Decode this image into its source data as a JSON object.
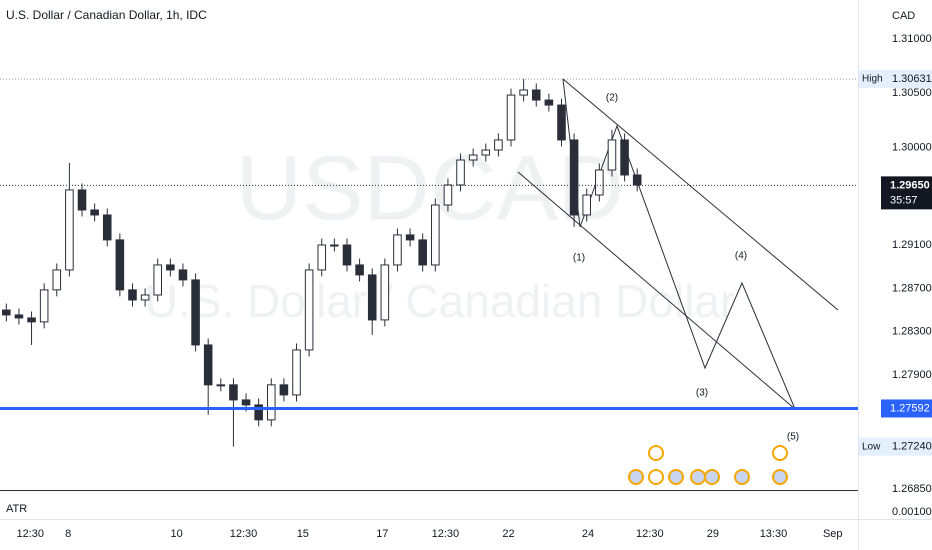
{
  "chart_data": {
    "type": "candlestick",
    "title": "U.S. Dollar / Canadian Dollar, 1h, IDC",
    "watermark": [
      "USDCAD",
      "U.S. Dollar / Canadian Dollar"
    ],
    "currency": "CAD",
    "color": "#2a2e39",
    "x": [
      0,
      1,
      2,
      3,
      4,
      5,
      6,
      7,
      8,
      9,
      10,
      11,
      12,
      13,
      14,
      15,
      16,
      17,
      18,
      19,
      20,
      21,
      22,
      23,
      24,
      25,
      26,
      27,
      28,
      29,
      30,
      31,
      32,
      33,
      34,
      35,
      36,
      37,
      38,
      39,
      40,
      41,
      42,
      43,
      44,
      45,
      46,
      47,
      48,
      49,
      50
    ],
    "open": [
      1.285,
      1.28455,
      1.28427,
      1.28391,
      1.28686,
      1.2887,
      1.29608,
      1.29423,
      1.29377,
      1.29147,
      1.28686,
      1.28593,
      1.28639,
      1.28916,
      1.2887,
      1.28778,
      1.28178,
      1.2781,
      1.2781,
      1.27671,
      1.27625,
      1.27487,
      1.2781,
      1.27717,
      1.28132,
      1.2887,
      1.291,
      1.291,
      1.28916,
      1.28824,
      1.28409,
      1.28916,
      1.29193,
      1.29147,
      1.28916,
      1.29469,
      1.29654,
      1.29884,
      1.2993,
      1.29976,
      1.30069,
      1.30483,
      1.3053,
      1.30437,
      1.30391,
      1.30069,
      1.29377,
      1.29561,
      1.29792,
      1.30069,
      1.29746
    ],
    "high": [
      1.2856,
      1.28515,
      1.28487,
      1.28746,
      1.2893,
      1.29857,
      1.29668,
      1.29483,
      1.29437,
      1.29207,
      1.28746,
      1.28699,
      1.28976,
      1.28976,
      1.2893,
      1.28838,
      1.28238,
      1.2787,
      1.2787,
      1.27731,
      1.27685,
      1.2787,
      1.2787,
      1.28192,
      1.2893,
      1.2916,
      1.2916,
      1.2916,
      1.28976,
      1.28884,
      1.28976,
      1.29253,
      1.29253,
      1.29207,
      1.29529,
      1.29714,
      1.29944,
      1.2999,
      1.30036,
      1.30129,
      1.30543,
      1.30631,
      1.3059,
      1.30497,
      1.30451,
      1.30129,
      1.29621,
      1.29852,
      1.30161,
      1.30129,
      1.29806
    ],
    "low": [
      1.28395,
      1.28367,
      1.28178,
      1.28331,
      1.28626,
      1.2881,
      1.29363,
      1.29317,
      1.29087,
      1.28626,
      1.28533,
      1.28533,
      1.28579,
      1.2881,
      1.28718,
      1.28118,
      1.27533,
      1.2775,
      1.2724,
      1.27565,
      1.27427,
      1.27427,
      1.27657,
      1.27657,
      1.28072,
      1.2881,
      1.2904,
      1.28856,
      1.28764,
      1.28271,
      1.28349,
      1.28856,
      1.29087,
      1.28856,
      1.28856,
      1.29409,
      1.29594,
      1.29824,
      1.2987,
      1.29916,
      1.30009,
      1.30423,
      1.30377,
      1.30331,
      1.30009,
      1.29267,
      1.29317,
      1.29501,
      1.29732,
      1.29686,
      1.29594
    ],
    "close": [
      1.28455,
      1.28427,
      1.28391,
      1.28686,
      1.2887,
      1.29608,
      1.29423,
      1.29377,
      1.29147,
      1.28686,
      1.28593,
      1.28639,
      1.28916,
      1.2887,
      1.28778,
      1.28178,
      1.2781,
      1.2781,
      1.27671,
      1.27625,
      1.27487,
      1.2781,
      1.27717,
      1.28132,
      1.2887,
      1.291,
      1.291,
      1.28916,
      1.28824,
      1.28409,
      1.28916,
      1.29193,
      1.29147,
      1.28916,
      1.29469,
      1.29654,
      1.29884,
      1.2993,
      1.29976,
      1.30069,
      1.30483,
      1.3053,
      1.30437,
      1.30391,
      1.30069,
      1.29377,
      1.29561,
      1.29792,
      1.30069,
      1.29746,
      1.29654
    ],
    "xlim": [
      -0.5,
      67.5
    ],
    "ylim": [
      1.2684,
      1.3136
    ],
    "yticks": [
      {
        "value": 1.31,
        "label": "1.31000"
      },
      {
        "value": 1.305,
        "label": "1.30500"
      },
      {
        "value": 1.3,
        "label": "1.30000"
      },
      {
        "value": 1.291,
        "label": "1.29100"
      },
      {
        "value": 1.287,
        "label": "1.28700"
      },
      {
        "value": 1.283,
        "label": "1.28300"
      },
      {
        "value": 1.279,
        "label": "1.27900"
      },
      {
        "value": 1.2685,
        "label": "1.26850"
      }
    ],
    "xticks": [
      {
        "value": 1.9,
        "label": "12:30"
      },
      {
        "value": 4.9,
        "label": "8"
      },
      {
        "value": 13.5,
        "label": "10"
      },
      {
        "value": 18.8,
        "label": "12:30"
      },
      {
        "value": 23.5,
        "label": "15"
      },
      {
        "value": 29.8,
        "label": "17"
      },
      {
        "value": 34.8,
        "label": "12:30"
      },
      {
        "value": 39.8,
        "label": "22"
      },
      {
        "value": 46.1,
        "label": "24"
      },
      {
        "value": 51,
        "label": "12:30"
      },
      {
        "value": 56,
        "label": "29"
      },
      {
        "value": 60.8,
        "label": "13:30"
      },
      {
        "value": 65.5,
        "label": "Sep"
      }
    ],
    "high_level": {
      "name": "High",
      "value": 1.30631,
      "label": "1.30631"
    },
    "low_level": {
      "name": "Low",
      "value": 1.2724,
      "label": "1.27240"
    },
    "last_price": {
      "value": 1.2965,
      "label": "1.29650",
      "countdown": "35:57"
    },
    "support": {
      "value": 1.27592,
      "label": "1.27592",
      "color": "#2962ff"
    },
    "wave_labels": [
      "(1)",
      "(2)",
      "(3)",
      "(4)",
      "(5)"
    ],
    "indicator": {
      "name": "ATR",
      "value": 0.001,
      "label": "0.00100"
    }
  }
}
